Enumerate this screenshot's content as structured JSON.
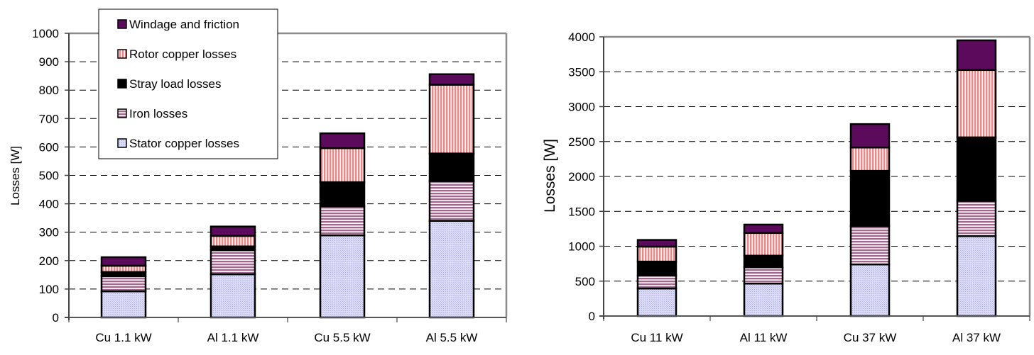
{
  "chart_data": [
    {
      "type": "bar",
      "stacked": true,
      "title": "",
      "xlabel": "",
      "ylabel": "Losses [W]",
      "ylim": [
        0,
        1000
      ],
      "yticks": [
        0,
        100,
        200,
        300,
        400,
        500,
        600,
        700,
        800,
        900,
        1000
      ],
      "grid": true,
      "legend_position": "top-left",
      "categories": [
        "Cu 1.1 kW",
        "Al 1.1 kW",
        "Cu 5.5 kW",
        "Al 5.5 kW"
      ],
      "series": [
        {
          "name": "Stator copper losses",
          "values": [
            92,
            152,
            289,
            340
          ]
        },
        {
          "name": "Iron losses",
          "values": [
            53,
            85,
            102,
            140
          ]
        },
        {
          "name": "Stray load losses",
          "values": [
            15,
            13,
            85,
            97
          ]
        },
        {
          "name": "Rotor copper losses",
          "values": [
            22,
            37,
            120,
            242
          ]
        },
        {
          "name": "Windage and friction",
          "values": [
            30,
            33,
            52,
            37
          ]
        }
      ]
    },
    {
      "type": "bar",
      "stacked": true,
      "title": "",
      "xlabel": "",
      "ylabel": "Losses [W]",
      "ylim": [
        0,
        4000
      ],
      "yticks": [
        0,
        500,
        1000,
        1500,
        2000,
        2500,
        3000,
        3500,
        4000
      ],
      "grid": true,
      "legend_position": "none",
      "categories": [
        "Cu 11 kW",
        "Al 11 kW",
        "Cu 37 kW",
        "Al 37 kW"
      ],
      "series": [
        {
          "name": "Stator copper losses",
          "values": [
            395,
            465,
            740,
            1145
          ]
        },
        {
          "name": "Iron losses",
          "values": [
            185,
            235,
            550,
            505
          ]
        },
        {
          "name": "Stray load losses",
          "values": [
            200,
            165,
            790,
            910
          ]
        },
        {
          "name": "Rotor copper losses",
          "values": [
            215,
            325,
            335,
            965
          ]
        },
        {
          "name": "Windage and friction",
          "values": [
            95,
            120,
            335,
            425
          ]
        }
      ]
    }
  ],
  "legend": {
    "entries": [
      {
        "label": "Windage and friction",
        "pattern": "windage"
      },
      {
        "label": "Rotor copper losses",
        "pattern": "rotor"
      },
      {
        "label": "Stray load losses",
        "pattern": "stray"
      },
      {
        "label": "Iron losses",
        "pattern": "iron"
      },
      {
        "label": "Stator copper losses",
        "pattern": "stator"
      }
    ]
  },
  "colors": {
    "windage": "#5c0b5c",
    "rotor_stripe": "#e48a8a",
    "stray": "#000000",
    "iron_stripe": "#9c6a8c",
    "stator": "#d4d4f4",
    "stator_dot": "#a8a8e0",
    "grid": "#000000",
    "frame": "#808080"
  }
}
